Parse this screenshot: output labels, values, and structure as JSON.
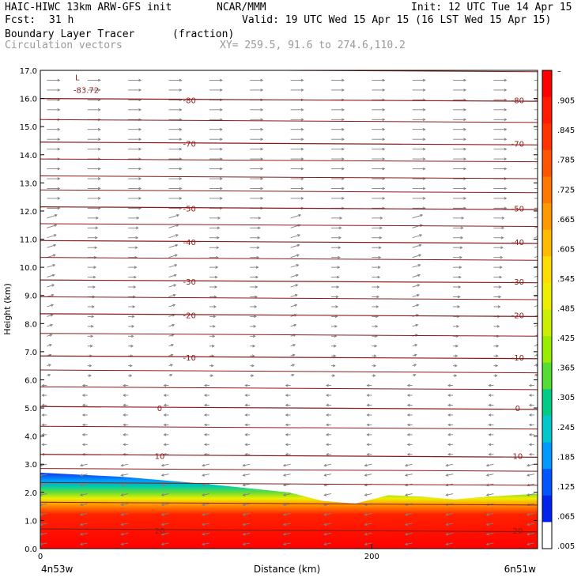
{
  "header": {
    "model": "HAIC-HIWC 13km ARW-GFS init",
    "org": "NCAR/MMM",
    "init": "Init: 12 UTC Tue 14 Apr 15",
    "fcst_label": "Fcst:",
    "fcst_value": "31 h",
    "valid": "Valid: 19 UTC Wed 15 Apr 15 (16 LST Wed 15 Apr 15)",
    "field_name": "Boundary Layer Tracer",
    "field_units": "(fraction)",
    "vector_field": "Circulation vectors",
    "xy_range": "XY= 259.5, 91.6 to 274.6,110.2"
  },
  "chart_data": {
    "type": "heatmap",
    "ylabel": "Height (km)",
    "xlabel": "Distance (km)",
    "xlim": [
      0,
      300
    ],
    "ylim": [
      0,
      17
    ],
    "y_ticks": [
      "0.0",
      "1.0",
      "2.0",
      "3.0",
      "4.0",
      "5.0",
      "6.0",
      "7.0",
      "8.0",
      "9.0",
      "10.0",
      "11.0",
      "12.0",
      "13.0",
      "14.0",
      "15.0",
      "16.0",
      "17.0"
    ],
    "x_ticks": [
      {
        "value": 0,
        "label": "0"
      },
      {
        "value": 200,
        "label": "200"
      }
    ],
    "x_endpoints": {
      "left": "4n53w",
      "right": "6n51w"
    },
    "colorbar": {
      "labels": [
        "–",
        ".905",
        ".845",
        ".785",
        ".725",
        ".665",
        ".605",
        ".545",
        ".485",
        ".425",
        ".365",
        ".305",
        ".245",
        ".185",
        ".125",
        ".065",
        ".005"
      ],
      "colors": [
        "#ff0000",
        "#ff1a00",
        "#ff3300",
        "#ff5500",
        "#ff7700",
        "#ff9900",
        "#ffbb00",
        "#ffdd00",
        "#eeee00",
        "#ccee00",
        "#99ee00",
        "#55dd33",
        "#00cc88",
        "#00c8cc",
        "#0099ff",
        "#0055ff",
        "#0022ee",
        "#ffffff"
      ]
    },
    "tracer_top_profile": [
      [
        0,
        2.7
      ],
      [
        50,
        2.55
      ],
      [
        100,
        2.3
      ],
      [
        150,
        2.0
      ],
      [
        170,
        1.7
      ],
      [
        190,
        1.6
      ],
      [
        210,
        1.9
      ],
      [
        230,
        1.85
      ],
      [
        250,
        1.75
      ],
      [
        270,
        1.85
      ],
      [
        300,
        1.95
      ]
    ],
    "isotherms": [
      {
        "value": -80,
        "label": "-80",
        "y": 15.95
      },
      {
        "value": -70,
        "label": "-70",
        "y": 14.4
      },
      {
        "value": -50,
        "label": "-50",
        "y": 12.1
      },
      {
        "value": -40,
        "label": "-40",
        "y": 10.9
      },
      {
        "value": -30,
        "label": "-30",
        "y": 9.5
      },
      {
        "value": -20,
        "label": "-20",
        "y": 8.3
      },
      {
        "value": -10,
        "label": "-10",
        "y": 6.8
      },
      {
        "value": 0,
        "label": "0",
        "y": 5.0
      },
      {
        "value": 10,
        "label": "10",
        "y": 3.3
      },
      {
        "value": 20,
        "label": "20",
        "y": 0.65
      }
    ],
    "low_marker": {
      "label": "L",
      "value": "-83.72"
    }
  }
}
